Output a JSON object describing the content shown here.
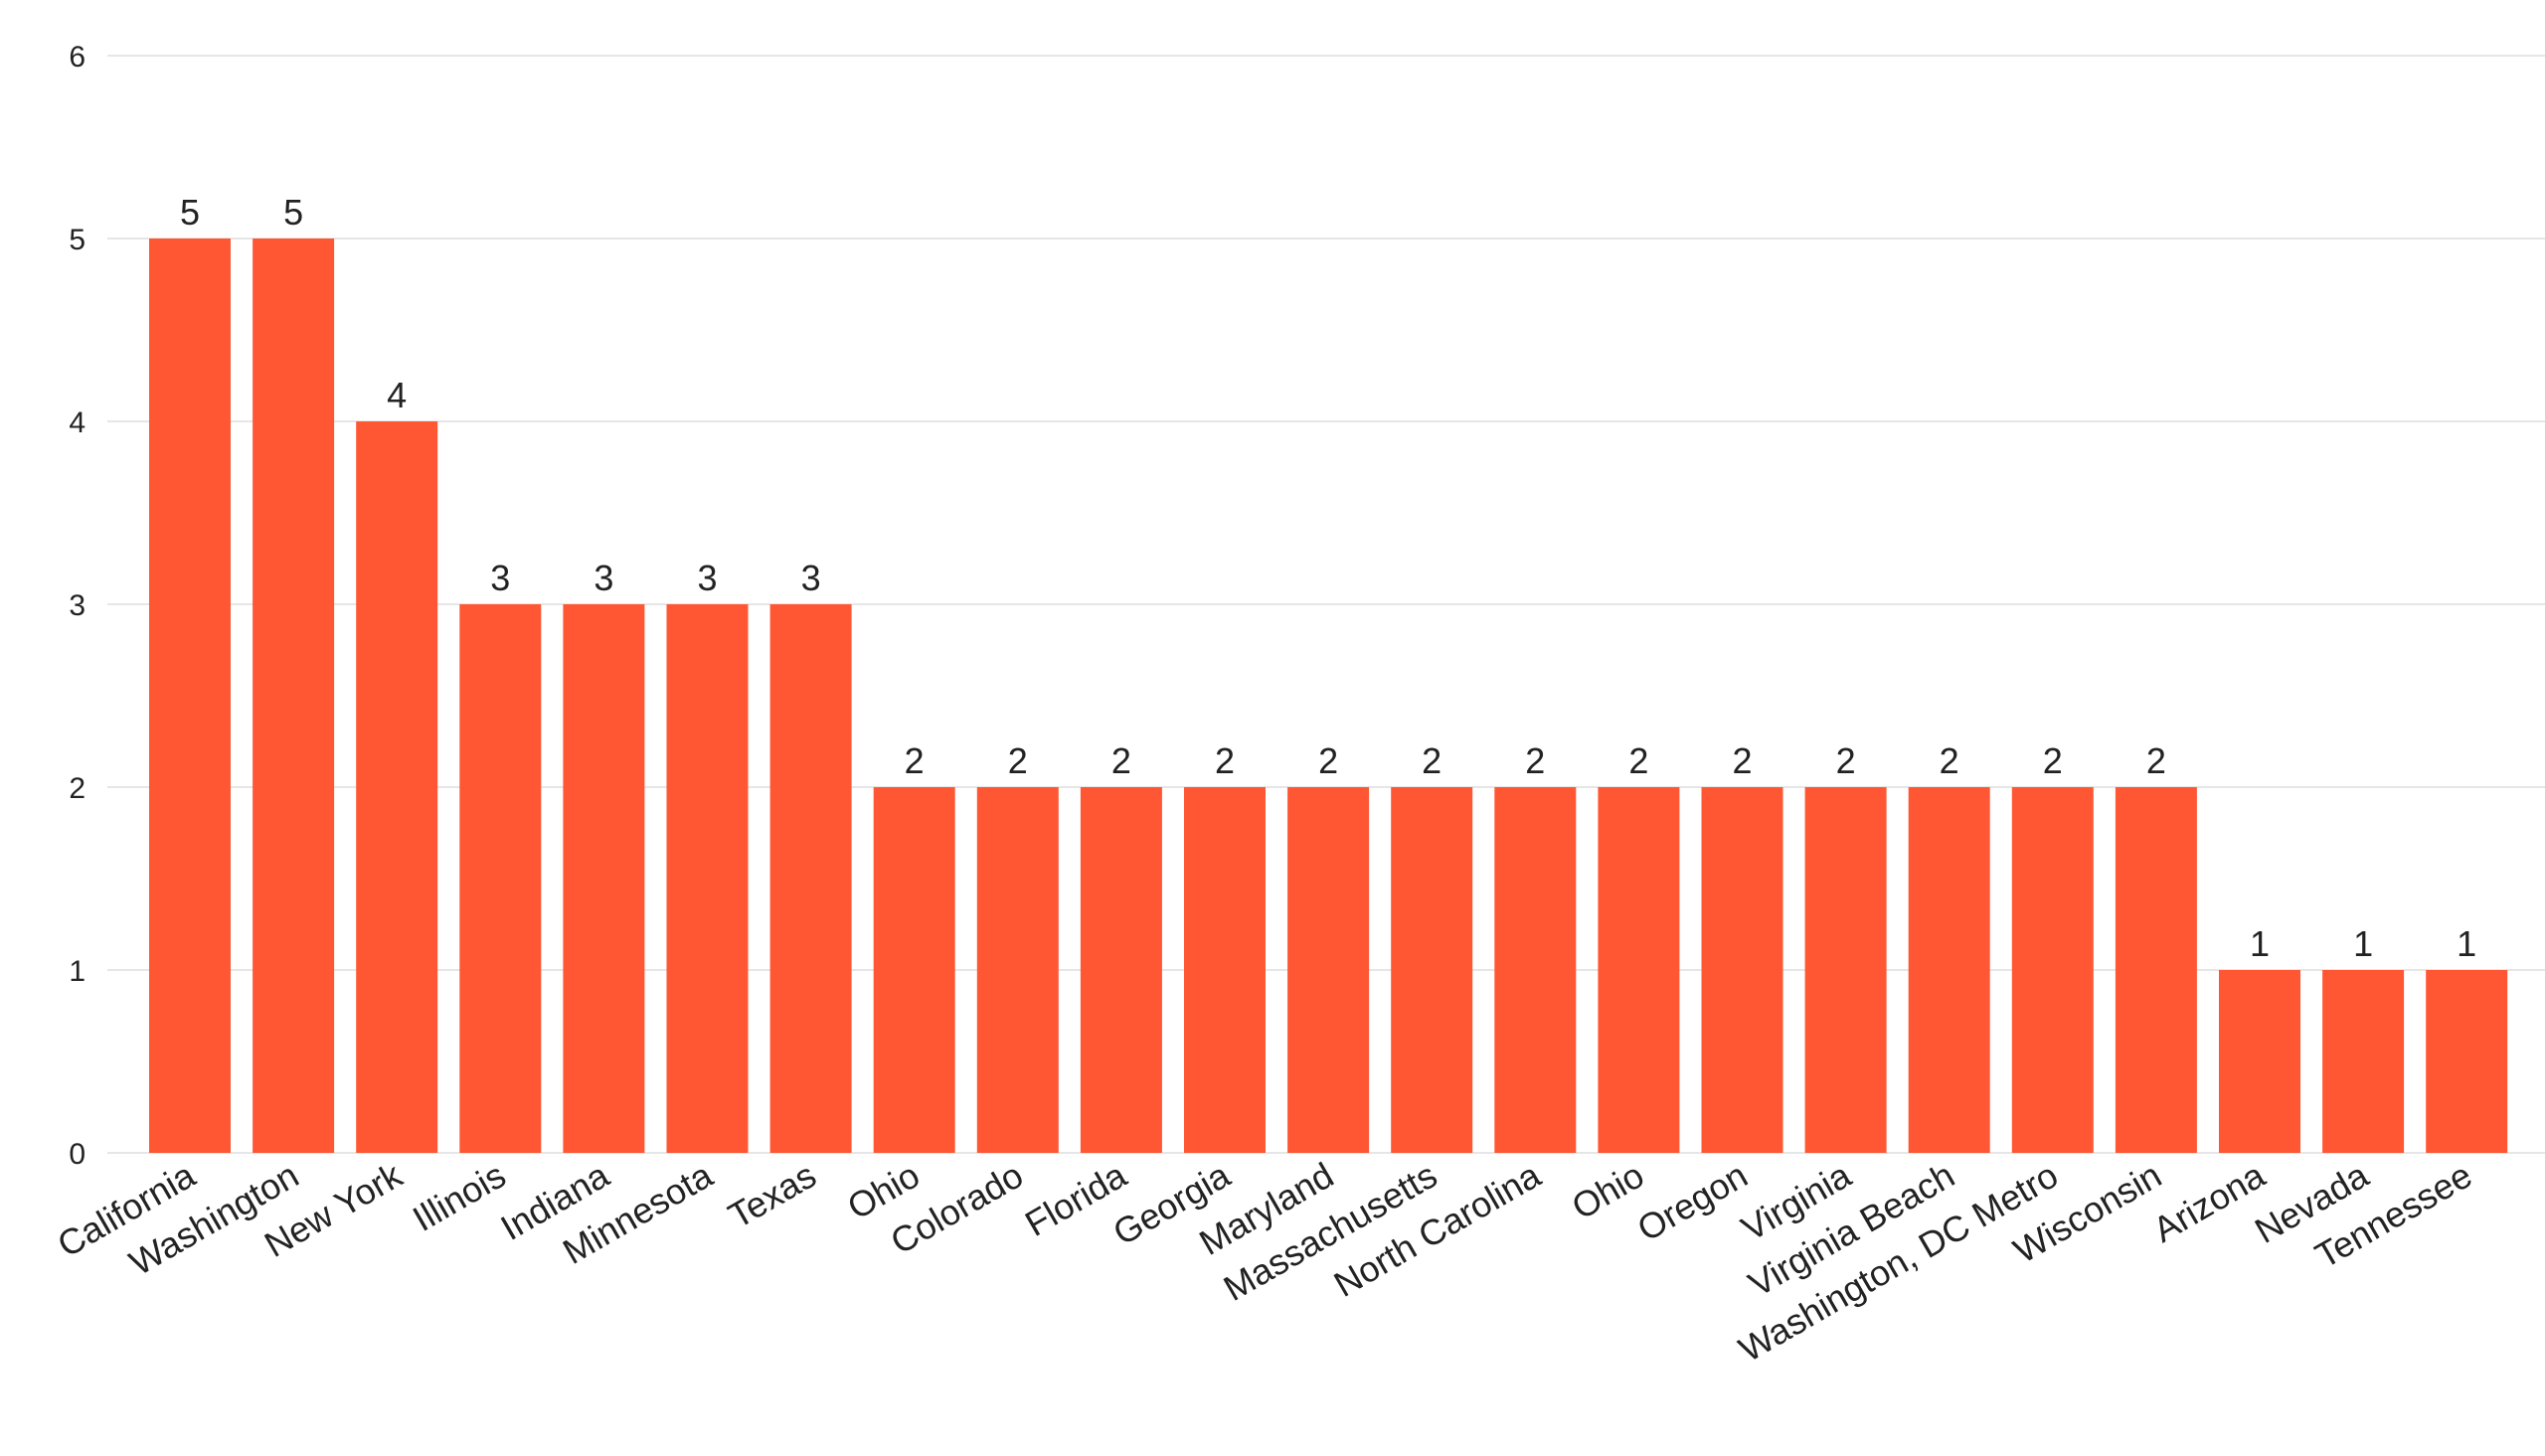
{
  "colors": {
    "bar": "#FF5733",
    "grid": "#E6E6E6",
    "text": "#222222",
    "background": "#FFFFFF"
  },
  "chart_data": {
    "type": "bar",
    "title": "",
    "xlabel": "",
    "ylabel": "",
    "ylim": [
      0,
      6
    ],
    "y_ticks": [
      0,
      1,
      2,
      3,
      4,
      5,
      6
    ],
    "grid": true,
    "legend": "none",
    "data_labels": true,
    "x_label_rotation": "diagonal",
    "categories": [
      "California",
      "Washington",
      "New York",
      "Illinois",
      "Indiana",
      "Minnesota",
      "Texas",
      "Ohio",
      "Colorado",
      "Florida",
      "Georgia",
      "Maryland",
      "Massachusetts",
      "North Carolina",
      "Ohio",
      "Oregon",
      "Virginia",
      "Virginia Beach",
      "Washington, DC Metro",
      "Wisconsin",
      "Arizona",
      "Nevada",
      "Tennessee"
    ],
    "values": [
      5,
      5,
      4,
      3,
      3,
      3,
      3,
      2,
      2,
      2,
      2,
      2,
      2,
      2,
      2,
      2,
      2,
      2,
      2,
      2,
      1,
      1,
      1
    ]
  }
}
